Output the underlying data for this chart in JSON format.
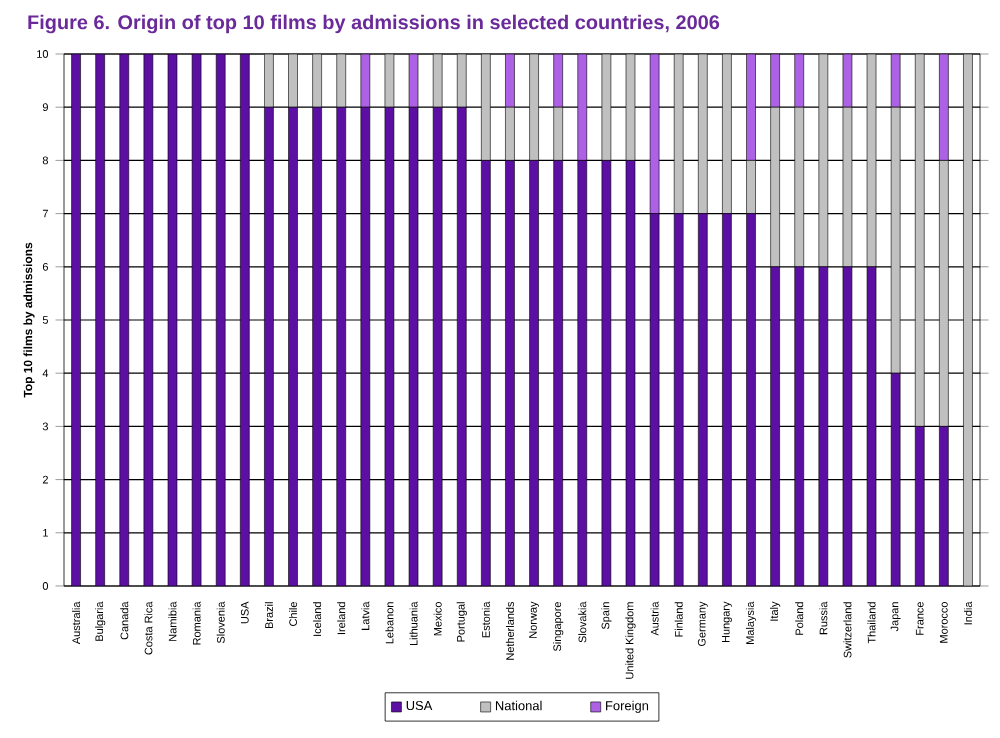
{
  "chart_data": {
    "type": "bar",
    "stacked": true,
    "title": "Figure 6. Origin of top 10 films by admissions in selected countries, 2006",
    "ylabel": "Top 10 films by admissions",
    "categories": [
      "Australia",
      "Bulgaria",
      "Canada",
      "Costa Rica",
      "Namibia",
      "Romania",
      "Slovenia",
      "USA",
      "Brazil",
      "Chile",
      "Iceland",
      "Ireland",
      "Latvia",
      "Lebanon",
      "Lithuania",
      "Mexico",
      "Portugal",
      "Estonia",
      "Netherlands",
      "Norway",
      "Singapore",
      "Slovakia",
      "Spain",
      "United Kingdom",
      "Austria",
      "Finland",
      "Germany",
      "Hungary",
      "Malaysia",
      "Italy",
      "Poland",
      "Russia",
      "Switzerland",
      "Thailand",
      "Japan",
      "France",
      "Morocco",
      "India"
    ],
    "series": [
      {
        "name": "USA",
        "color": "#5c0fa3",
        "values": [
          10,
          10,
          10,
          10,
          10,
          10,
          10,
          10,
          9,
          9,
          9,
          9,
          9,
          9,
          9,
          9,
          9,
          8,
          8,
          8,
          8,
          8,
          8,
          8,
          7,
          7,
          7,
          7,
          7,
          6,
          6,
          6,
          6,
          6,
          4,
          3,
          3,
          0
        ]
      },
      {
        "name": "National",
        "color": "#c0c0c0",
        "values": [
          0,
          0,
          0,
          0,
          0,
          0,
          0,
          0,
          1,
          1,
          1,
          1,
          0,
          1,
          0,
          1,
          1,
          2,
          1,
          2,
          1,
          0,
          2,
          2,
          0,
          3,
          3,
          3,
          1,
          3,
          3,
          4,
          3,
          4,
          5,
          7,
          5,
          10
        ]
      },
      {
        "name": "Foreign",
        "color": "#ad62e6",
        "values": [
          0,
          0,
          0,
          0,
          0,
          0,
          0,
          0,
          0,
          0,
          0,
          0,
          1,
          0,
          1,
          0,
          0,
          0,
          1,
          0,
          1,
          2,
          0,
          0,
          3,
          0,
          0,
          0,
          2,
          1,
          1,
          0,
          1,
          0,
          1,
          0,
          2,
          0
        ]
      }
    ],
    "ylim": [
      0,
      10
    ],
    "yticks": [
      0,
      1,
      2,
      3,
      4,
      5,
      6,
      7,
      8,
      9,
      10
    ],
    "grid": "y",
    "legend": "bottom"
  }
}
